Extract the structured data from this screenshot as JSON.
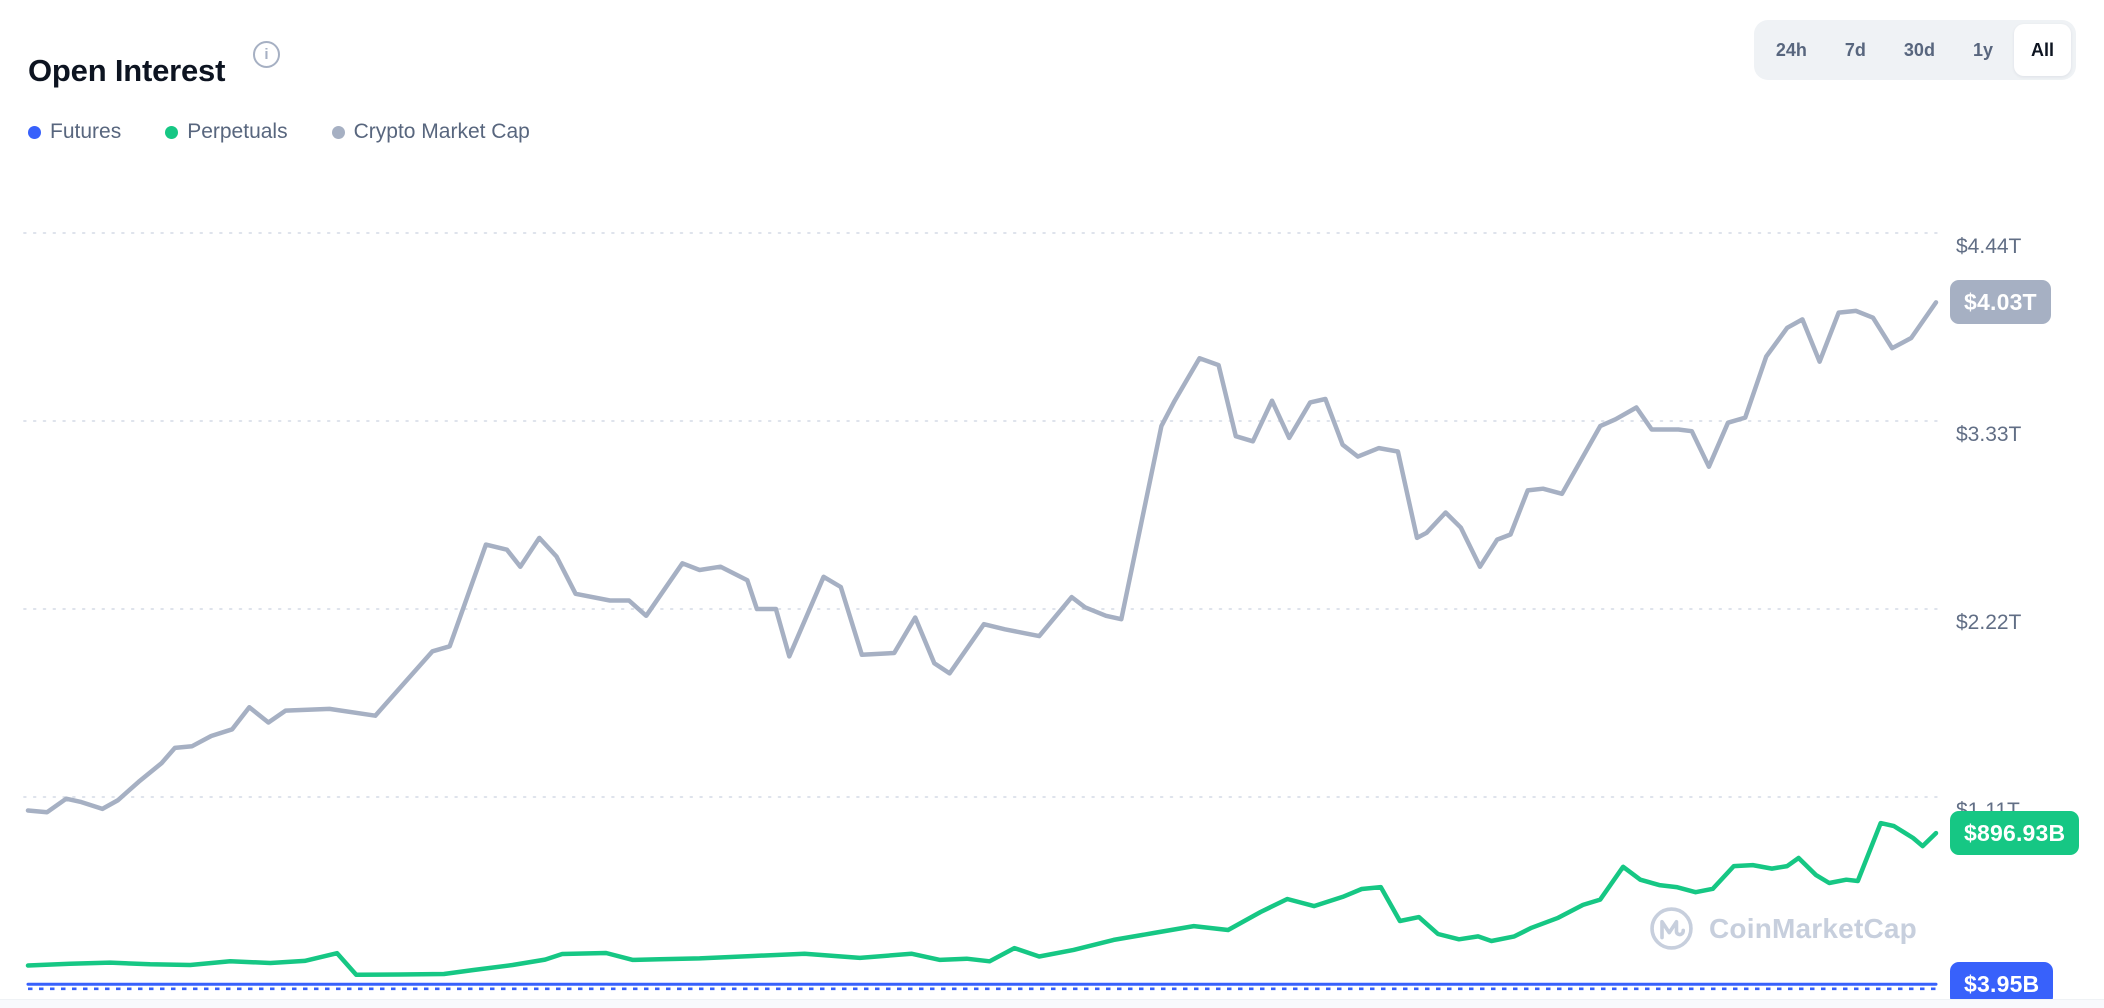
{
  "header": {
    "title": "Open Interest",
    "info_glyph": "i"
  },
  "legend": [
    {
      "label": "Futures",
      "color": "#3861fb"
    },
    {
      "label": "Perpetuals",
      "color": "#16c784"
    },
    {
      "label": "Crypto Market Cap",
      "color": "#a6b0c3"
    }
  ],
  "range_selector": {
    "options": [
      "24h",
      "7d",
      "30d",
      "1y",
      "All"
    ],
    "active": "All"
  },
  "y_axis": {
    "labels": [
      {
        "text": "$4.44T",
        "value_b": 4440
      },
      {
        "text": "$3.33T",
        "value_b": 3330
      },
      {
        "text": "$2.22T",
        "value_b": 2220
      },
      {
        "text": "$1.11T",
        "value_b": 1110
      }
    ]
  },
  "badges": [
    {
      "text": "$4.03T",
      "bg": "#a6b0c3",
      "series": "Crypto Market Cap",
      "value_b": 4030
    },
    {
      "text": "$896.93B",
      "bg": "#16c784",
      "series": "Perpetuals",
      "value_b": 897
    },
    {
      "text": "$3.95B",
      "bg": "#3861fb",
      "series": "Futures",
      "value_b": 3.95
    }
  ],
  "watermark": {
    "text": "CoinMarketCap"
  },
  "chart_data": {
    "type": "line",
    "title": "Open Interest",
    "unit": "USD billions",
    "x_axis": "time (unlabeled, full history, normalized 0-1)",
    "ylim_b": [
      0,
      4890
    ],
    "grid": "dotted horizontal lines at tick values",
    "legend_position": "top-left",
    "series": [
      {
        "name": "Crypto Market Cap",
        "color": "#a6b0c3",
        "width": 4.5,
        "style": "solid",
        "end_label": "$4.03T",
        "points": [
          [
            0.0,
            1030
          ],
          [
            0.01,
            1020
          ],
          [
            0.02,
            1100
          ],
          [
            0.028,
            1080
          ],
          [
            0.039,
            1040
          ],
          [
            0.047,
            1090
          ],
          [
            0.058,
            1200
          ],
          [
            0.07,
            1310
          ],
          [
            0.077,
            1400
          ],
          [
            0.086,
            1410
          ],
          [
            0.096,
            1470
          ],
          [
            0.107,
            1510
          ],
          [
            0.116,
            1640
          ],
          [
            0.126,
            1550
          ],
          [
            0.135,
            1620
          ],
          [
            0.158,
            1630
          ],
          [
            0.182,
            1590
          ],
          [
            0.212,
            1970
          ],
          [
            0.221,
            2000
          ],
          [
            0.24,
            2600
          ],
          [
            0.251,
            2570
          ],
          [
            0.258,
            2470
          ],
          [
            0.268,
            2640
          ],
          [
            0.277,
            2530
          ],
          [
            0.287,
            2310
          ],
          [
            0.305,
            2270
          ],
          [
            0.315,
            2270
          ],
          [
            0.324,
            2180
          ],
          [
            0.343,
            2490
          ],
          [
            0.352,
            2450
          ],
          [
            0.363,
            2470
          ],
          [
            0.377,
            2390
          ],
          [
            0.382,
            2220
          ],
          [
            0.392,
            2220
          ],
          [
            0.399,
            1940
          ],
          [
            0.417,
            2410
          ],
          [
            0.426,
            2350
          ],
          [
            0.437,
            1950
          ],
          [
            0.454,
            1960
          ],
          [
            0.465,
            2170
          ],
          [
            0.475,
            1900
          ],
          [
            0.483,
            1840
          ],
          [
            0.501,
            2130
          ],
          [
            0.512,
            2100
          ],
          [
            0.53,
            2060
          ],
          [
            0.547,
            2290
          ],
          [
            0.554,
            2230
          ],
          [
            0.565,
            2180
          ],
          [
            0.573,
            2160
          ],
          [
            0.594,
            3300
          ],
          [
            0.601,
            3450
          ],
          [
            0.614,
            3700
          ],
          [
            0.624,
            3660
          ],
          [
            0.633,
            3240
          ],
          [
            0.642,
            3210
          ],
          [
            0.652,
            3450
          ],
          [
            0.661,
            3230
          ],
          [
            0.672,
            3440
          ],
          [
            0.68,
            3460
          ],
          [
            0.689,
            3190
          ],
          [
            0.697,
            3120
          ],
          [
            0.708,
            3170
          ],
          [
            0.718,
            3150
          ],
          [
            0.728,
            2640
          ],
          [
            0.733,
            2670
          ],
          [
            0.743,
            2790
          ],
          [
            0.751,
            2700
          ],
          [
            0.761,
            2470
          ],
          [
            0.77,
            2630
          ],
          [
            0.777,
            2660
          ],
          [
            0.786,
            2920
          ],
          [
            0.794,
            2930
          ],
          [
            0.804,
            2900
          ],
          [
            0.824,
            3300
          ],
          [
            0.832,
            3340
          ],
          [
            0.843,
            3410
          ],
          [
            0.851,
            3280
          ],
          [
            0.865,
            3280
          ],
          [
            0.872,
            3270
          ],
          [
            0.881,
            3060
          ],
          [
            0.891,
            3320
          ],
          [
            0.9,
            3350
          ],
          [
            0.911,
            3710
          ],
          [
            0.922,
            3880
          ],
          [
            0.93,
            3930
          ],
          [
            0.939,
            3680
          ],
          [
            0.949,
            3970
          ],
          [
            0.958,
            3980
          ],
          [
            0.967,
            3940
          ],
          [
            0.977,
            3760
          ],
          [
            0.987,
            3820
          ],
          [
            1.0,
            4030
          ]
        ]
      },
      {
        "name": "Perpetuals",
        "color": "#16c784",
        "width": 4.5,
        "style": "solid",
        "end_label": "$896.93B",
        "points": [
          [
            0.0,
            115
          ],
          [
            0.022,
            125
          ],
          [
            0.043,
            132
          ],
          [
            0.064,
            122
          ],
          [
            0.085,
            118
          ],
          [
            0.106,
            140
          ],
          [
            0.127,
            130
          ],
          [
            0.145,
            142
          ],
          [
            0.162,
            188
          ],
          [
            0.172,
            60
          ],
          [
            0.195,
            62
          ],
          [
            0.218,
            65
          ],
          [
            0.233,
            88
          ],
          [
            0.254,
            118
          ],
          [
            0.271,
            150
          ],
          [
            0.28,
            183
          ],
          [
            0.303,
            189
          ],
          [
            0.317,
            148
          ],
          [
            0.331,
            152
          ],
          [
            0.352,
            157
          ],
          [
            0.38,
            171
          ],
          [
            0.407,
            185
          ],
          [
            0.436,
            160
          ],
          [
            0.463,
            185
          ],
          [
            0.478,
            148
          ],
          [
            0.492,
            155
          ],
          [
            0.504,
            140
          ],
          [
            0.517,
            218
          ],
          [
            0.53,
            168
          ],
          [
            0.548,
            207
          ],
          [
            0.569,
            266
          ],
          [
            0.59,
            307
          ],
          [
            0.611,
            348
          ],
          [
            0.629,
            325
          ],
          [
            0.646,
            431
          ],
          [
            0.66,
            508
          ],
          [
            0.674,
            466
          ],
          [
            0.689,
            520
          ],
          [
            0.699,
            567
          ],
          [
            0.709,
            578
          ],
          [
            0.719,
            378
          ],
          [
            0.729,
            401
          ],
          [
            0.739,
            301
          ],
          [
            0.75,
            270
          ],
          [
            0.76,
            287
          ],
          [
            0.767,
            260
          ],
          [
            0.779,
            287
          ],
          [
            0.788,
            338
          ],
          [
            0.802,
            397
          ],
          [
            0.815,
            473
          ],
          [
            0.824,
            504
          ],
          [
            0.836,
            698
          ],
          [
            0.845,
            622
          ],
          [
            0.855,
            590
          ],
          [
            0.864,
            578
          ],
          [
            0.874,
            548
          ],
          [
            0.883,
            568
          ],
          [
            0.894,
            702
          ],
          [
            0.904,
            708
          ],
          [
            0.914,
            687
          ],
          [
            0.922,
            702
          ],
          [
            0.928,
            750
          ],
          [
            0.937,
            650
          ],
          [
            0.944,
            602
          ],
          [
            0.953,
            622
          ],
          [
            0.959,
            614
          ],
          [
            0.971,
            956
          ],
          [
            0.978,
            938
          ],
          [
            0.988,
            868
          ],
          [
            0.993,
            820
          ],
          [
            1.0,
            897
          ]
        ]
      },
      {
        "name": "Futures",
        "color": "#3861fb",
        "width": 3,
        "style": "solid-with-dashed-underlay",
        "end_label": "$3.95B",
        "points": [
          [
            0.0,
            3.95
          ],
          [
            0.25,
            3.95
          ],
          [
            0.5,
            3.95
          ],
          [
            0.75,
            3.95
          ],
          [
            1.0,
            3.95
          ]
        ]
      }
    ]
  }
}
